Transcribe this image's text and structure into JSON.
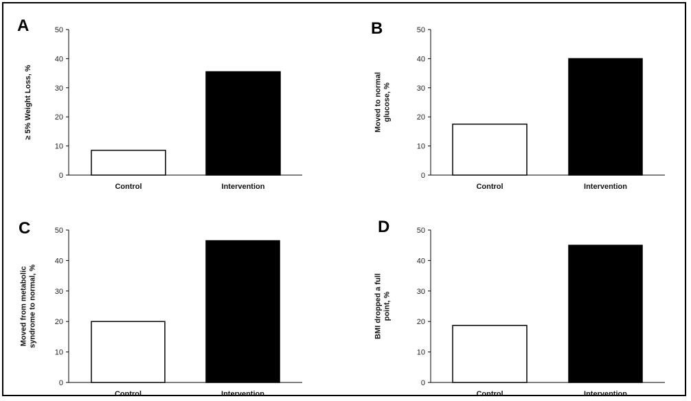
{
  "colors": {
    "control": "#ffffff",
    "intervention": "#000000",
    "axis": "#000000"
  },
  "chart_data": [
    {
      "type": "bar",
      "panel_label": "A",
      "categories": [
        "Control",
        "Intervention"
      ],
      "values": [
        8.5,
        35.5
      ],
      "ylabel_lines": [
        "≥ 5% Weight Loss, %"
      ],
      "ylim": [
        0,
        50
      ],
      "yticks": [
        "0",
        "10",
        "20",
        "30",
        "40",
        "50"
      ],
      "grid": false
    },
    {
      "type": "bar",
      "panel_label": "B",
      "categories": [
        "Control",
        "Intervention"
      ],
      "values": [
        17.5,
        40
      ],
      "ylabel_lines": [
        "Moved to normal",
        "glucose, %"
      ],
      "ylim": [
        0,
        50
      ],
      "yticks": [
        "0",
        "10",
        "20",
        "30",
        "40",
        "50"
      ],
      "grid": false
    },
    {
      "type": "bar",
      "panel_label": "C",
      "categories": [
        "Control",
        "Intervention"
      ],
      "values": [
        20,
        46.5
      ],
      "ylabel_lines": [
        "Moved from metabolic",
        "syndrome to normal, %"
      ],
      "ylim": [
        0,
        50
      ],
      "yticks": [
        "0",
        "10",
        "20",
        "30",
        "40",
        "50"
      ],
      "grid": false
    },
    {
      "type": "bar",
      "panel_label": "D",
      "categories": [
        "Control",
        "Intervention"
      ],
      "values": [
        18.7,
        45
      ],
      "ylabel_lines": [
        "BMI dropped a full",
        "point, %"
      ],
      "ylim": [
        0,
        50
      ],
      "yticks": [
        "0",
        "10",
        "20",
        "30",
        "40",
        "50"
      ],
      "grid": false
    }
  ]
}
